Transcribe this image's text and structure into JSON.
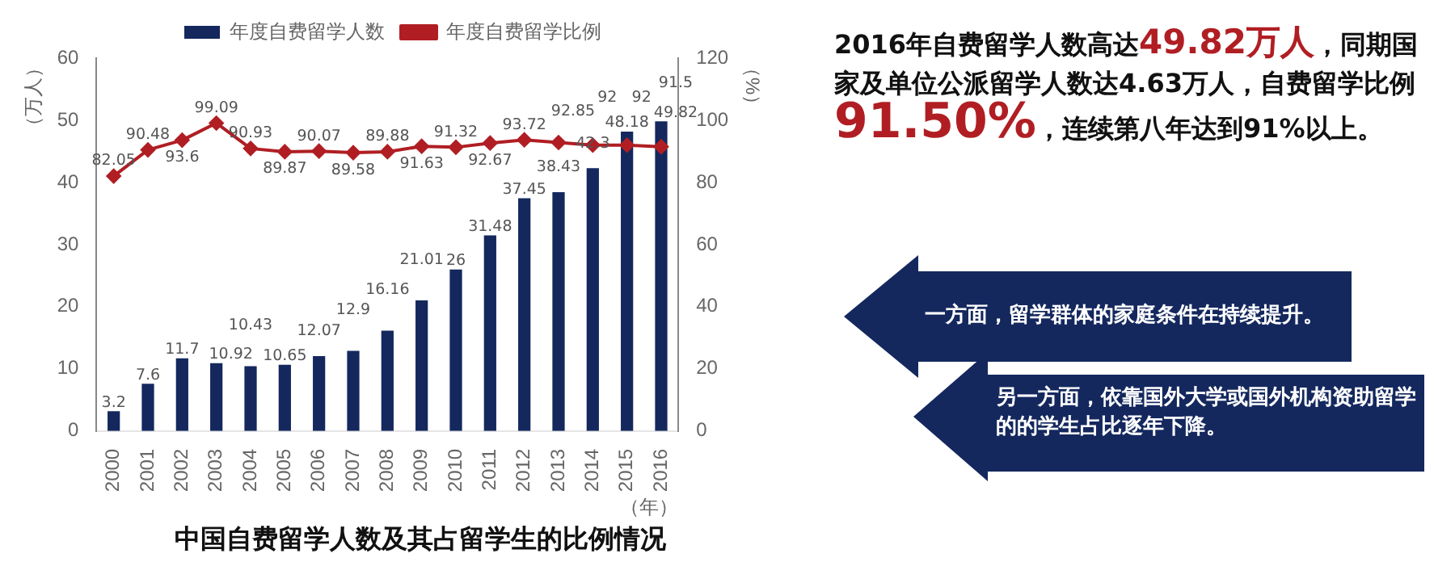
{
  "chart_data": {
    "type": "bar",
    "title": "中国自费留学人数及其占留学生的比例情况",
    "xlabel": "（年）",
    "ylabel": "（万人）",
    "y2label": "（%）",
    "categories": [
      "2000",
      "2001",
      "2002",
      "2003",
      "2004",
      "2005",
      "2006",
      "2007",
      "2008",
      "2009",
      "2010",
      "2011",
      "2012",
      "2013",
      "2014",
      "2015",
      "2016"
    ],
    "series": [
      {
        "name": "年度自费留学人数",
        "type": "bar",
        "color": "#14285e",
        "values": [
          3.2,
          7.6,
          11.7,
          10.92,
          10.43,
          10.65,
          12.07,
          12.9,
          16.16,
          21.01,
          26,
          31.48,
          37.45,
          38.43,
          42.3,
          48.18,
          49.82
        ]
      },
      {
        "name": "年度自费留学比例",
        "type": "line",
        "axis": "y2",
        "color": "#b01e23",
        "values": [
          82.05,
          90.48,
          93.6,
          99.09,
          90.93,
          89.87,
          90.07,
          89.58,
          89.88,
          91.63,
          91.32,
          92.67,
          93.72,
          92.85,
          92,
          92,
          91.5
        ]
      }
    ],
    "ylim": [
      0,
      60
    ],
    "yticks": [
      0,
      10,
      20,
      30,
      40,
      50,
      60
    ],
    "y2lim": [
      0,
      120
    ],
    "y2ticks": [
      0,
      20,
      40,
      60,
      80,
      100,
      120
    ],
    "grid": false,
    "legend": "top",
    "marker": "diamond",
    "line_style": "solid",
    "data_labels": true,
    "annotations": [
      "2016年自费留学人数高达",
      "49.82万人",
      "，同期国家及单位公派留学人数达4.63万人，自费留学比例",
      "91.50%",
      "，连续第八年达到91%以上。",
      "一方面，留学群体的家庭条件在持续提升。",
      "另一方面，依靠国外大学或国外机构资助留学的的学生占比逐年下降。"
    ]
  }
}
